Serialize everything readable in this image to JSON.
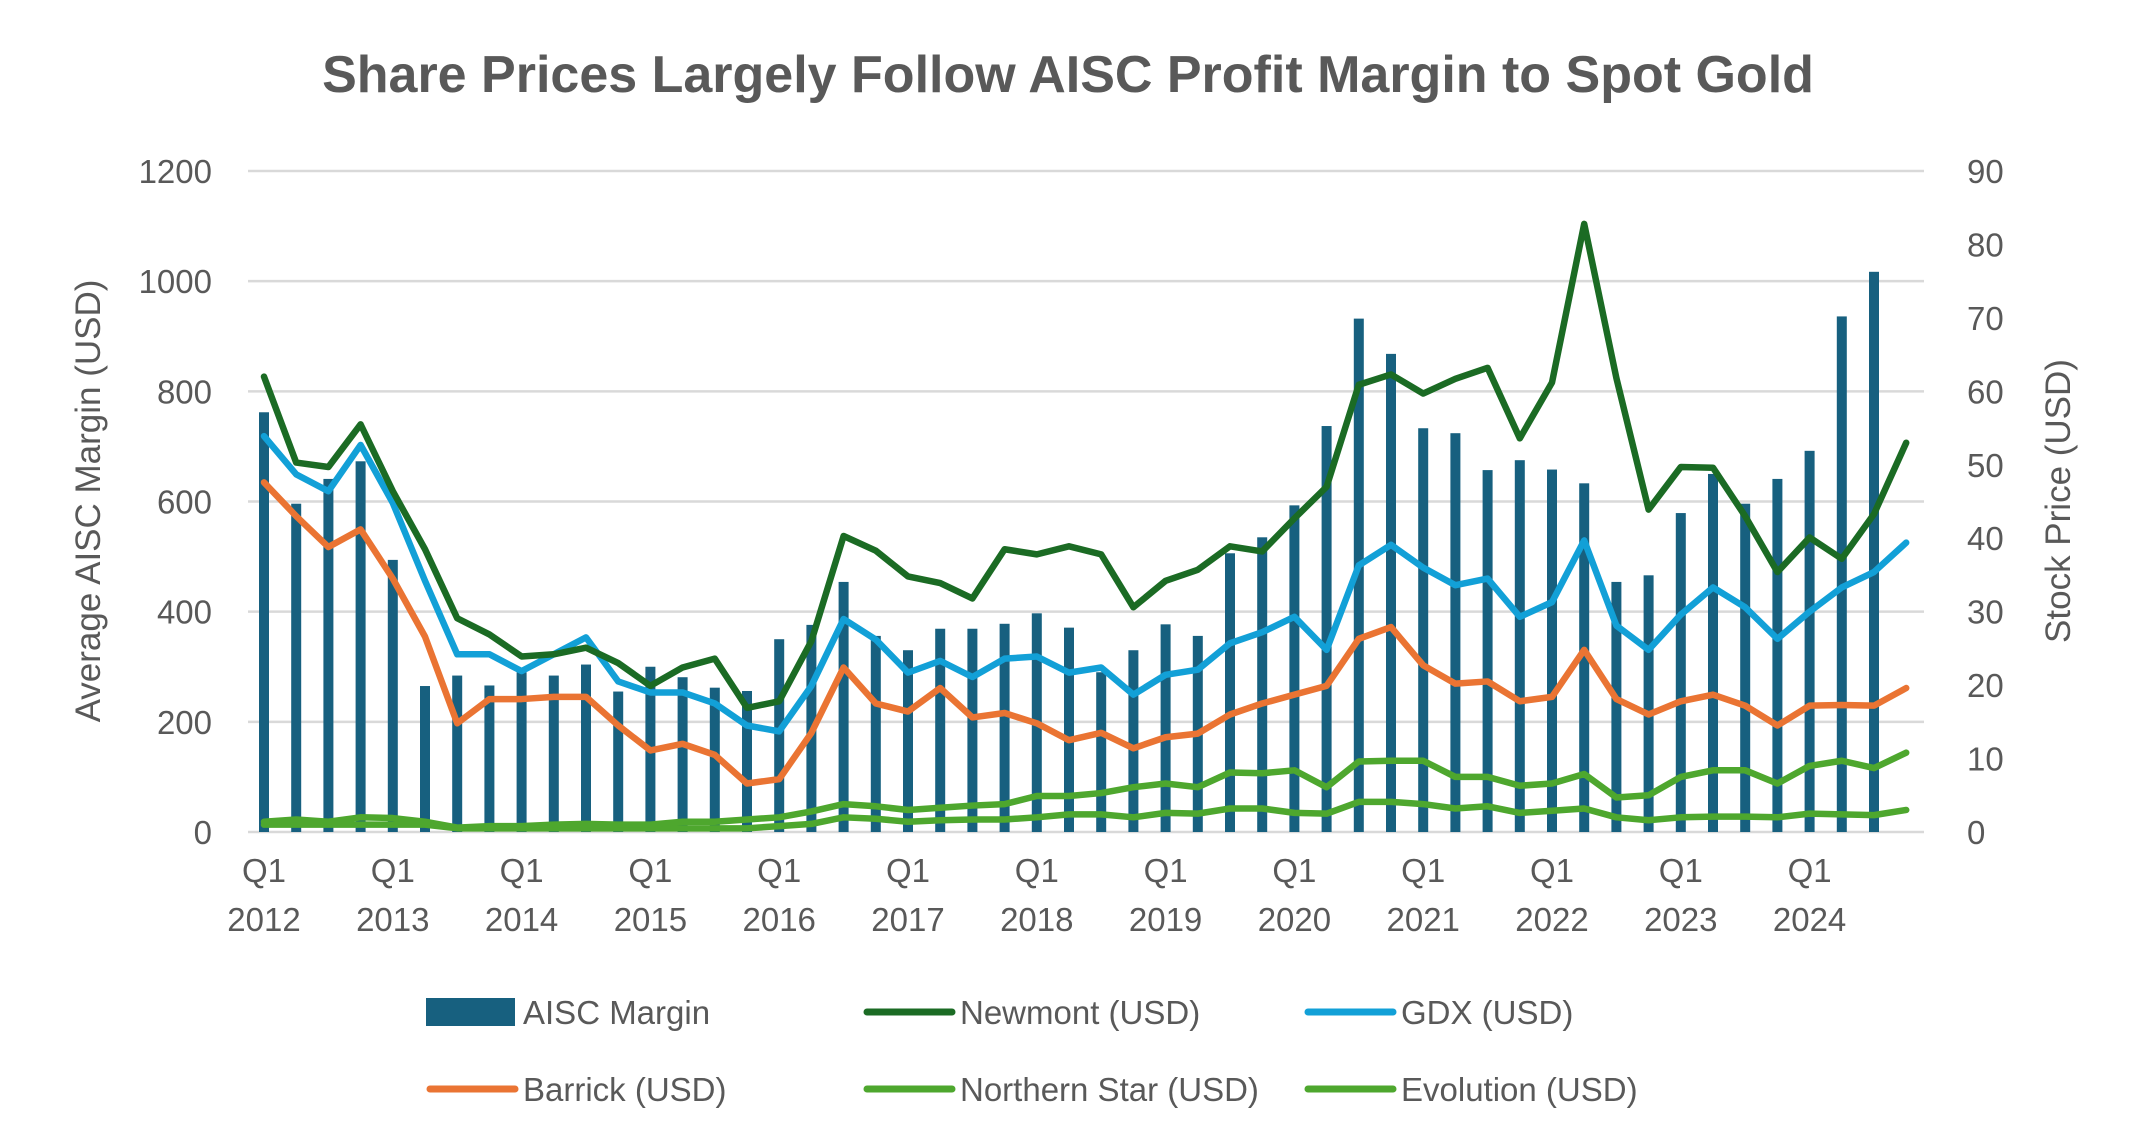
{
  "chart_data": {
    "type": "bar+line",
    "title": "Share Prices Largely Follow AISC Profit Margin to Spot Gold",
    "ylabel": "Average AISC Margin (USD)",
    "y2label": "Stock Price (USD)",
    "ylim": [
      0,
      1200
    ],
    "y2lim": [
      0,
      90
    ],
    "yticks": [
      "0",
      "200",
      "400",
      "600",
      "800",
      "1000",
      "1200"
    ],
    "y2ticks": [
      "0",
      "10",
      "20",
      "30",
      "40",
      "50",
      "60",
      "70",
      "80",
      "90"
    ],
    "grid": true,
    "legend_position": "bottom",
    "xtick_labels": [
      {
        "index": 0,
        "q": "Q1",
        "year": "2012"
      },
      {
        "index": 4,
        "q": "Q1",
        "year": "2013"
      },
      {
        "index": 8,
        "q": "Q1",
        "year": "2014"
      },
      {
        "index": 12,
        "q": "Q1",
        "year": "2015"
      },
      {
        "index": 16,
        "q": "Q1",
        "year": "2016"
      },
      {
        "index": 20,
        "q": "Q1",
        "year": "2017"
      },
      {
        "index": 24,
        "q": "Q1",
        "year": "2018"
      },
      {
        "index": 28,
        "q": "Q1",
        "year": "2019"
      },
      {
        "index": 32,
        "q": "Q1",
        "year": "2020"
      },
      {
        "index": 36,
        "q": "Q1",
        "year": "2021"
      },
      {
        "index": 40,
        "q": "Q1",
        "year": "2022"
      },
      {
        "index": 44,
        "q": "Q1",
        "year": "2023"
      },
      {
        "index": 48,
        "q": "Q1",
        "year": "2024"
      }
    ],
    "x": [
      "2012Q1",
      "2012Q2",
      "2012Q3",
      "2012Q4",
      "2013Q1",
      "2013Q2",
      "2013Q3",
      "2013Q4",
      "2014Q1",
      "2014Q2",
      "2014Q3",
      "2014Q4",
      "2015Q1",
      "2015Q2",
      "2015Q3",
      "2015Q4",
      "2016Q1",
      "2016Q2",
      "2016Q3",
      "2016Q4",
      "2017Q1",
      "2017Q2",
      "2017Q3",
      "2017Q4",
      "2018Q1",
      "2018Q2",
      "2018Q3",
      "2018Q4",
      "2019Q1",
      "2019Q2",
      "2019Q3",
      "2019Q4",
      "2020Q1",
      "2020Q2",
      "2020Q3",
      "2020Q4",
      "2021Q1",
      "2021Q2",
      "2021Q3",
      "2021Q4",
      "2022Q1",
      "2022Q2",
      "2022Q3",
      "2022Q4",
      "2023Q1",
      "2023Q2",
      "2023Q3",
      "2023Q4",
      "2024Q1",
      "2024Q2",
      "2024Q3",
      "2024Q4"
    ],
    "bars": {
      "name": "AISC Margin",
      "color": "#17607F",
      "axis": "left",
      "values": [
        762,
        596,
        641,
        673,
        494,
        265,
        284,
        266,
        290,
        284,
        304,
        255,
        300,
        281,
        262,
        256,
        350,
        376,
        454,
        356,
        330,
        369,
        369,
        378,
        397,
        371,
        290,
        330,
        377,
        356,
        506,
        535,
        593,
        737,
        932,
        868,
        733,
        724,
        657,
        675,
        658,
        633,
        454,
        466,
        579,
        650,
        596,
        641,
        692,
        936,
        1017,
        null
      ]
    },
    "series": [
      {
        "name": "Newmont (USD)",
        "color": "#1B6B24",
        "axis": "right",
        "values": [
          62.0,
          50.3,
          49.7,
          55.5,
          46.4,
          38.5,
          29.1,
          26.9,
          23.9,
          24.2,
          25.1,
          23.0,
          19.9,
          22.4,
          23.6,
          16.9,
          17.8,
          26.0,
          40.3,
          38.3,
          34.8,
          33.9,
          31.8,
          38.5,
          37.8,
          38.9,
          37.8,
          30.6,
          34.2,
          35.7,
          38.9,
          38.2,
          42.7,
          47.0,
          60.9,
          62.3,
          59.7,
          61.7,
          63.2,
          53.6,
          61.2,
          82.8,
          61.8,
          43.9,
          49.7,
          49.6,
          43.0,
          35.4,
          40.1,
          37.2,
          43.3,
          53.0
        ]
      },
      {
        "name": "GDX (USD)",
        "color": "#12A0D7",
        "axis": "right",
        "values": [
          53.9,
          48.7,
          46.4,
          52.7,
          44.8,
          34.2,
          24.2,
          24.2,
          21.9,
          24.2,
          26.5,
          20.5,
          19.0,
          19.0,
          17.5,
          14.5,
          13.7,
          19.9,
          29.0,
          26.2,
          21.7,
          23.3,
          21.1,
          23.6,
          23.9,
          21.7,
          22.4,
          18.7,
          21.4,
          22.1,
          25.7,
          27.2,
          29.3,
          24.8,
          36.3,
          39.1,
          36.0,
          33.6,
          34.5,
          29.3,
          31.3,
          39.7,
          28.1,
          24.8,
          29.6,
          33.3,
          30.6,
          26.3,
          30.0,
          33.3,
          35.4,
          39.4
        ]
      },
      {
        "name": "Barrick (USD)",
        "color": "#EA7433",
        "axis": "right",
        "values": [
          47.6,
          43.0,
          38.8,
          41.2,
          34.5,
          26.6,
          14.8,
          18.1,
          18.1,
          18.4,
          18.4,
          14.5,
          11.1,
          12.0,
          10.5,
          6.6,
          7.2,
          13.5,
          22.4,
          17.5,
          16.4,
          19.6,
          15.6,
          16.2,
          14.8,
          12.5,
          13.5,
          11.4,
          12.9,
          13.4,
          16.0,
          17.5,
          18.7,
          19.9,
          26.3,
          27.9,
          22.7,
          20.2,
          20.5,
          17.8,
          18.4,
          24.8,
          18.1,
          16.0,
          17.8,
          18.7,
          17.2,
          14.5,
          17.2,
          17.3,
          17.2,
          19.6
        ]
      },
      {
        "name": "Northern Star (USD)",
        "color": "#4EA72E",
        "axis": "right",
        "values": [
          1.4,
          1.7,
          1.4,
          2.0,
          1.9,
          1.4,
          0.6,
          0.8,
          0.8,
          1.0,
          1.1,
          1.0,
          1.0,
          1.4,
          1.4,
          1.7,
          2.0,
          2.8,
          3.8,
          3.5,
          3.0,
          3.3,
          3.6,
          3.8,
          4.9,
          4.9,
          5.3,
          6.1,
          6.6,
          6.1,
          8.1,
          8.0,
          8.4,
          6.1,
          9.6,
          9.7,
          9.7,
          7.5,
          7.5,
          6.3,
          6.6,
          7.9,
          4.7,
          5.0,
          7.5,
          8.4,
          8.4,
          6.6,
          9.0,
          9.7,
          8.7,
          10.8
        ]
      },
      {
        "name": "Evolution (USD)",
        "color": "#4EA72E",
        "axis": "right",
        "values": [
          1.0,
          1.0,
          1.0,
          1.0,
          1.0,
          1.0,
          0.5,
          0.5,
          0.5,
          0.5,
          0.5,
          0.5,
          0.5,
          0.5,
          0.5,
          0.5,
          0.8,
          1.1,
          2.0,
          1.8,
          1.4,
          1.6,
          1.7,
          1.7,
          2.0,
          2.4,
          2.4,
          2.0,
          2.6,
          2.5,
          3.2,
          3.2,
          2.6,
          2.5,
          4.1,
          4.1,
          3.8,
          3.2,
          3.5,
          2.6,
          2.9,
          3.2,
          2.0,
          1.6,
          2.0,
          2.1,
          2.1,
          2.0,
          2.5,
          2.4,
          2.3,
          3.0
        ]
      }
    ],
    "legend": [
      {
        "label": "AISC Margin",
        "kind": "bar",
        "color": "#17607F"
      },
      {
        "label": "Newmont (USD)",
        "kind": "line",
        "color": "#1B6B24"
      },
      {
        "label": "GDX (USD)",
        "kind": "line",
        "color": "#12A0D7"
      },
      {
        "label": "Barrick (USD)",
        "kind": "line",
        "color": "#EA7433"
      },
      {
        "label": "Northern Star (USD)",
        "kind": "line",
        "color": "#4EA72E"
      },
      {
        "label": "Evolution (USD)",
        "kind": "line",
        "color": "#4EA72E"
      }
    ]
  }
}
